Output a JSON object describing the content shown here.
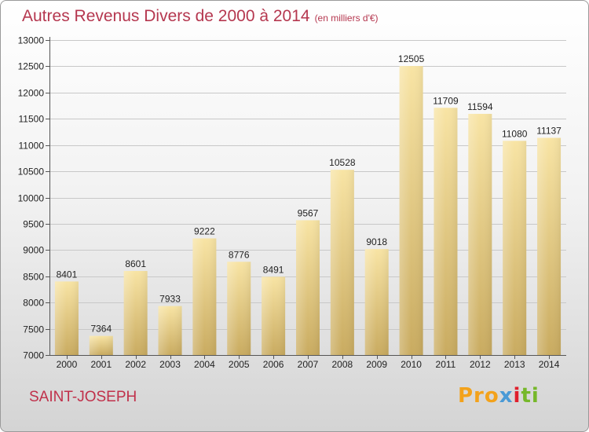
{
  "chart_data": {
    "type": "bar",
    "title": "Autres Revenus Divers de 2000 à 2014",
    "subtitle": "(en milliers d'€)",
    "categories": [
      "2000",
      "2001",
      "2002",
      "2003",
      "2004",
      "2005",
      "2006",
      "2007",
      "2008",
      "2009",
      "2010",
      "2011",
      "2012",
      "2013",
      "2014"
    ],
    "values": [
      8401,
      7364,
      8601,
      7933,
      9222,
      8776,
      8491,
      9567,
      10528,
      9018,
      12505,
      11709,
      11594,
      11080,
      11137
    ],
    "ylim": [
      7000,
      13000
    ],
    "yticks": [
      7000,
      7500,
      8000,
      8500,
      9000,
      9500,
      10000,
      10500,
      11000,
      11500,
      12000,
      12500,
      13000
    ],
    "grid": true,
    "bar_color": "#e8cd84"
  },
  "location": "SAINT-JOSEPH",
  "brand": {
    "p1": "Pro",
    "p2": "x",
    "p3": "i",
    "p4": "ti"
  }
}
